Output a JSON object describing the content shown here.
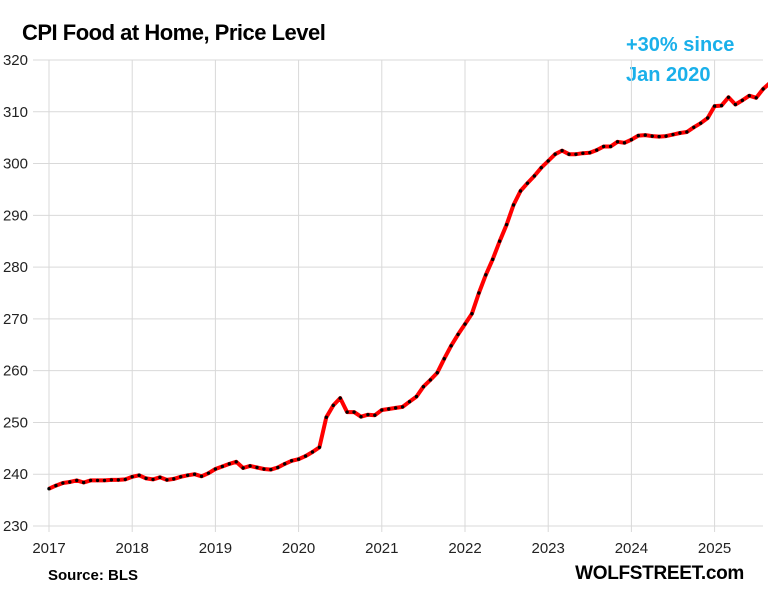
{
  "chart_data": {
    "type": "line",
    "title": "CPI Food at Home, Price Level",
    "annotation": [
      "+30% since",
      "Jan 2020"
    ],
    "source": "Source: BLS",
    "brand": "WOLFSTREET.com",
    "start": "2017-01",
    "frequency": "monthly",
    "ylim": [
      230,
      320
    ],
    "yticks": [
      230,
      240,
      250,
      260,
      270,
      280,
      290,
      300,
      310,
      320
    ],
    "xticks": [
      "2017",
      "2018",
      "2019",
      "2020",
      "2021",
      "2022",
      "2023",
      "2024",
      "2025"
    ],
    "grid": true,
    "line_color": "#ff0000",
    "marker_color": "#000000",
    "annotation_color": "#1ab0ea",
    "values": [
      237.2,
      237.8,
      238.3,
      238.5,
      238.8,
      238.4,
      238.8,
      238.8,
      238.8,
      238.9,
      238.9,
      239.0,
      239.5,
      239.8,
      239.2,
      239.0,
      239.4,
      238.9,
      239.1,
      239.5,
      239.8,
      240.0,
      239.6,
      240.2,
      241.0,
      241.5,
      242.0,
      242.4,
      241.2,
      241.6,
      241.3,
      241.0,
      240.9,
      241.3,
      242.0,
      242.6,
      242.9,
      243.5,
      244.3,
      245.2,
      251.0,
      253.3,
      254.7,
      252.0,
      252.0,
      251.1,
      251.5,
      251.4,
      252.4,
      252.6,
      252.8,
      253.0,
      254.0,
      255.0,
      256.9,
      258.2,
      259.6,
      262.3,
      264.8,
      267.0,
      269.0,
      271.0,
      275.0,
      278.5,
      281.5,
      285.0,
      288.2,
      292.0,
      294.7,
      296.2,
      297.6,
      299.2,
      300.5,
      301.8,
      302.5,
      301.8,
      301.8,
      302.0,
      302.1,
      302.6,
      303.3,
      303.3,
      304.2,
      304.0,
      304.6,
      305.4,
      305.5,
      305.3,
      305.2,
      305.3,
      305.6,
      305.9,
      306.1,
      307.0,
      307.8,
      308.8,
      311.1,
      311.2,
      312.8,
      311.4,
      312.2,
      313.1,
      312.7,
      314.4,
      315.6
    ]
  }
}
